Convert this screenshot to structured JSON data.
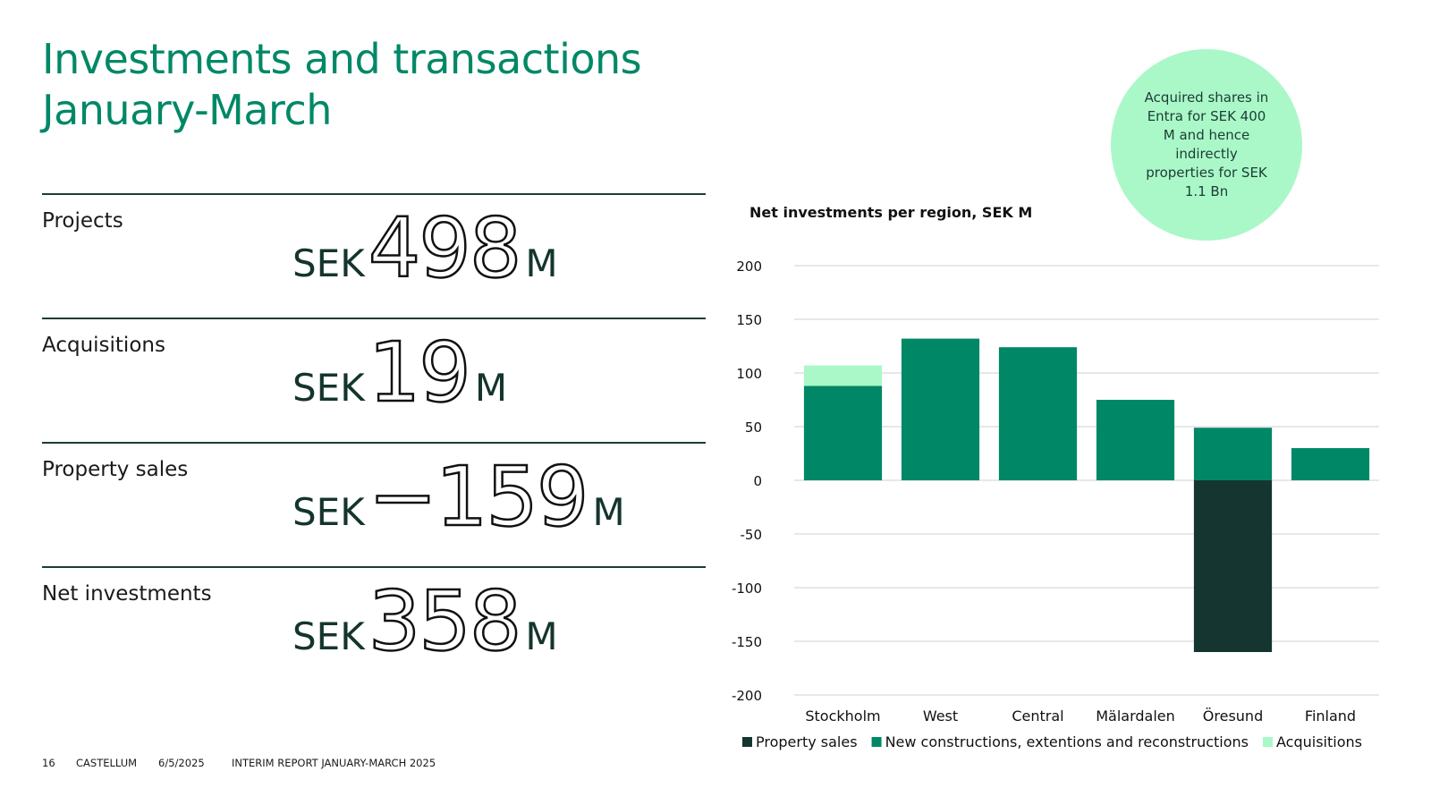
{
  "title": {
    "line1": "Investments and transactions",
    "line2": "January-March"
  },
  "colors": {
    "title": "#008866",
    "property_sales": "#143530",
    "new_constructions": "#008866",
    "acquisitions": "#aaf8c8",
    "bubble": "#aaf8c8"
  },
  "kpis": [
    {
      "label": "Projects",
      "prefix": "SEK",
      "value": "498",
      "suffix": "M"
    },
    {
      "label": "Acquisitions",
      "prefix": "SEK",
      "value": "19",
      "suffix": "M"
    },
    {
      "label": "Property sales",
      "prefix": "SEK",
      "value": "−159",
      "suffix": "M"
    },
    {
      "label": "Net investments",
      "prefix": "SEK",
      "value": "358",
      "suffix": "M"
    }
  ],
  "bubble": {
    "text": "Acquired shares in Entra for SEK 400 M and hence indirectly properties for SEK 1.1 Bn"
  },
  "chart_data": {
    "type": "bar",
    "stacked": true,
    "title": "Net investments per region, SEK M",
    "categories": [
      "Stockholm",
      "West",
      "Central",
      "Mälardalen",
      "Öresund",
      "Finland"
    ],
    "series": [
      {
        "name": "Property sales",
        "values": [
          0,
          0,
          0,
          0,
          -160,
          0
        ]
      },
      {
        "name": "New constructions, extentions and reconstructions",
        "values": [
          88,
          132,
          124,
          75,
          49,
          30
        ]
      },
      {
        "name": "Acquisitions",
        "values": [
          19,
          0,
          0,
          0,
          0,
          0
        ]
      }
    ],
    "ylim": [
      -200,
      200
    ],
    "yticks": [
      200,
      150,
      100,
      50,
      0,
      -50,
      -100,
      -150,
      -200
    ],
    "grid": true,
    "legend": "bottom"
  },
  "footer": {
    "page": "16",
    "company": "CASTELLUM",
    "date": "6/5/2025",
    "report": "INTERIM REPORT JANUARY-MARCH 2025"
  }
}
